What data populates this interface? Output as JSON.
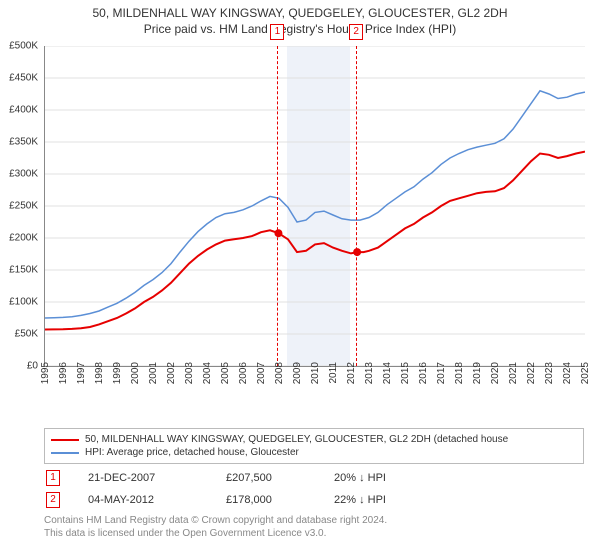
{
  "title_line1": "50, MILDENHALL WAY KINGSWAY, QUEDGELEY, GLOUCESTER, GL2 2DH",
  "title_line2": "Price paid vs. HM Land Registry's House Price Index (HPI)",
  "chart": {
    "type": "line",
    "background_color": "#ffffff",
    "grid_color": "#e0e0e0",
    "axis_color": "#888888",
    "tick_fontsize": 10,
    "x_start": 1995,
    "x_end": 2025,
    "xticks": [
      1995,
      1996,
      1997,
      1998,
      1999,
      2000,
      2001,
      2002,
      2003,
      2004,
      2005,
      2006,
      2007,
      2008,
      2009,
      2010,
      2011,
      2012,
      2013,
      2014,
      2015,
      2016,
      2017,
      2018,
      2019,
      2020,
      2021,
      2022,
      2023,
      2024,
      2025
    ],
    "ylim": [
      0,
      500000
    ],
    "ytick_step": 50000,
    "ytick_labels": [
      "£0",
      "£50K",
      "£100K",
      "£150K",
      "£200K",
      "£250K",
      "£300K",
      "£350K",
      "£400K",
      "£450K",
      "£500K"
    ],
    "band": {
      "from": 2008.5,
      "to": 2012.0,
      "color": "#eef2f9"
    },
    "vlines": [
      {
        "x": 2007.97,
        "color": "#e60000"
      },
      {
        "x": 2012.34,
        "color": "#e60000"
      }
    ],
    "markers_top": [
      {
        "label": "1",
        "x": 2007.97,
        "color": "#e60000"
      },
      {
        "label": "2",
        "x": 2012.34,
        "color": "#e60000"
      }
    ],
    "series": [
      {
        "name": "property",
        "color": "#e60000",
        "line_width": 2,
        "points": [
          [
            1995.0,
            57000
          ],
          [
            1995.5,
            57200
          ],
          [
            1996.0,
            57400
          ],
          [
            1996.5,
            58000
          ],
          [
            1997.0,
            59000
          ],
          [
            1997.5,
            61000
          ],
          [
            1998.0,
            65000
          ],
          [
            1998.5,
            70000
          ],
          [
            1999.0,
            75000
          ],
          [
            1999.5,
            82000
          ],
          [
            2000.0,
            90000
          ],
          [
            2000.5,
            100000
          ],
          [
            2001.0,
            108000
          ],
          [
            2001.5,
            118000
          ],
          [
            2002.0,
            130000
          ],
          [
            2002.5,
            145000
          ],
          [
            2003.0,
            160000
          ],
          [
            2003.5,
            172000
          ],
          [
            2004.0,
            182000
          ],
          [
            2004.5,
            190000
          ],
          [
            2005.0,
            196000
          ],
          [
            2005.5,
            198000
          ],
          [
            2006.0,
            200000
          ],
          [
            2006.5,
            203000
          ],
          [
            2007.0,
            209000
          ],
          [
            2007.5,
            212000
          ],
          [
            2007.97,
            207500
          ],
          [
            2008.5,
            198000
          ],
          [
            2009.0,
            178000
          ],
          [
            2009.5,
            180000
          ],
          [
            2010.0,
            190000
          ],
          [
            2010.5,
            192000
          ],
          [
            2011.0,
            185000
          ],
          [
            2011.5,
            180000
          ],
          [
            2012.0,
            176000
          ],
          [
            2012.34,
            178000
          ],
          [
            2012.7,
            178000
          ],
          [
            2013.0,
            180000
          ],
          [
            2013.5,
            185000
          ],
          [
            2014.0,
            195000
          ],
          [
            2014.5,
            205000
          ],
          [
            2015.0,
            215000
          ],
          [
            2015.5,
            222000
          ],
          [
            2016.0,
            232000
          ],
          [
            2016.5,
            240000
          ],
          [
            2017.0,
            250000
          ],
          [
            2017.5,
            258000
          ],
          [
            2018.0,
            262000
          ],
          [
            2018.5,
            266000
          ],
          [
            2019.0,
            270000
          ],
          [
            2019.5,
            272000
          ],
          [
            2020.0,
            273000
          ],
          [
            2020.5,
            278000
          ],
          [
            2021.0,
            290000
          ],
          [
            2021.5,
            305000
          ],
          [
            2022.0,
            320000
          ],
          [
            2022.5,
            332000
          ],
          [
            2023.0,
            330000
          ],
          [
            2023.5,
            325000
          ],
          [
            2024.0,
            328000
          ],
          [
            2024.5,
            332000
          ],
          [
            2025.0,
            335000
          ]
        ],
        "sale_dots": [
          [
            2007.97,
            207500
          ],
          [
            2012.34,
            178000
          ]
        ]
      },
      {
        "name": "hpi",
        "color": "#5b8fd6",
        "line_width": 1.5,
        "points": [
          [
            1995.0,
            75000
          ],
          [
            1995.5,
            75500
          ],
          [
            1996.0,
            76000
          ],
          [
            1996.5,
            77000
          ],
          [
            1997.0,
            79000
          ],
          [
            1997.5,
            82000
          ],
          [
            1998.0,
            86000
          ],
          [
            1998.5,
            92000
          ],
          [
            1999.0,
            98000
          ],
          [
            1999.5,
            106000
          ],
          [
            2000.0,
            115000
          ],
          [
            2000.5,
            126000
          ],
          [
            2001.0,
            135000
          ],
          [
            2001.5,
            146000
          ],
          [
            2002.0,
            160000
          ],
          [
            2002.5,
            178000
          ],
          [
            2003.0,
            195000
          ],
          [
            2003.5,
            210000
          ],
          [
            2004.0,
            222000
          ],
          [
            2004.5,
            232000
          ],
          [
            2005.0,
            238000
          ],
          [
            2005.5,
            240000
          ],
          [
            2006.0,
            244000
          ],
          [
            2006.5,
            250000
          ],
          [
            2007.0,
            258000
          ],
          [
            2007.5,
            265000
          ],
          [
            2008.0,
            262000
          ],
          [
            2008.5,
            248000
          ],
          [
            2009.0,
            225000
          ],
          [
            2009.5,
            228000
          ],
          [
            2010.0,
            240000
          ],
          [
            2010.5,
            242000
          ],
          [
            2011.0,
            236000
          ],
          [
            2011.5,
            230000
          ],
          [
            2012.0,
            228000
          ],
          [
            2012.5,
            228000
          ],
          [
            2013.0,
            232000
          ],
          [
            2013.5,
            240000
          ],
          [
            2014.0,
            252000
          ],
          [
            2014.5,
            262000
          ],
          [
            2015.0,
            272000
          ],
          [
            2015.5,
            280000
          ],
          [
            2016.0,
            292000
          ],
          [
            2016.5,
            302000
          ],
          [
            2017.0,
            315000
          ],
          [
            2017.5,
            325000
          ],
          [
            2018.0,
            332000
          ],
          [
            2018.5,
            338000
          ],
          [
            2019.0,
            342000
          ],
          [
            2019.5,
            345000
          ],
          [
            2020.0,
            348000
          ],
          [
            2020.5,
            355000
          ],
          [
            2021.0,
            370000
          ],
          [
            2021.5,
            390000
          ],
          [
            2022.0,
            410000
          ],
          [
            2022.5,
            430000
          ],
          [
            2023.0,
            425000
          ],
          [
            2023.5,
            418000
          ],
          [
            2024.0,
            420000
          ],
          [
            2024.5,
            425000
          ],
          [
            2025.0,
            428000
          ]
        ]
      }
    ]
  },
  "legend": {
    "items": [
      {
        "color": "#e60000",
        "label": "50, MILDENHALL WAY KINGSWAY, QUEDGELEY, GLOUCESTER, GL2 2DH (detached house"
      },
      {
        "color": "#5b8fd6",
        "label": "HPI: Average price, detached house, Gloucester"
      }
    ]
  },
  "sales": [
    {
      "n": "1",
      "date": "21-DEC-2007",
      "price": "£207,500",
      "delta": "20% ↓ HPI",
      "color": "#e60000"
    },
    {
      "n": "2",
      "date": "04-MAY-2012",
      "price": "£178,000",
      "delta": "22% ↓ HPI",
      "color": "#e60000"
    }
  ],
  "footer_l1": "Contains HM Land Registry data © Crown copyright and database right 2024.",
  "footer_l2": "This data is licensed under the Open Government Licence v3.0."
}
